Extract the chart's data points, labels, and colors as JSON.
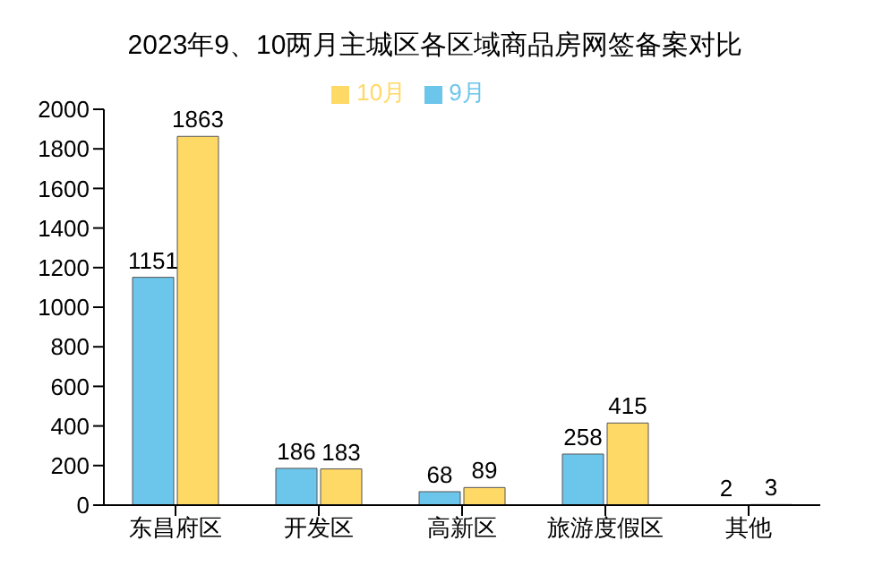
{
  "chart_data": {
    "type": "bar",
    "title": "2023年9、10两月主城区各区域商品房网签备案对比",
    "categories": [
      "东昌府区",
      "开发区",
      "高新区",
      "旅游度假区",
      "其他"
    ],
    "series": [
      {
        "name": "9月",
        "color": "#6cc5eb",
        "values": [
          1151,
          186,
          68,
          258,
          2
        ]
      },
      {
        "name": "10月",
        "color": "#ffd966",
        "values": [
          1863,
          183,
          89,
          415,
          3
        ]
      }
    ],
    "ylim": [
      0,
      2000
    ],
    "yticks": [
      0,
      200,
      400,
      600,
      800,
      1000,
      1200,
      1400,
      1600,
      1800,
      2000
    ],
    "grid": false,
    "legend": "top",
    "data_labels": true
  }
}
